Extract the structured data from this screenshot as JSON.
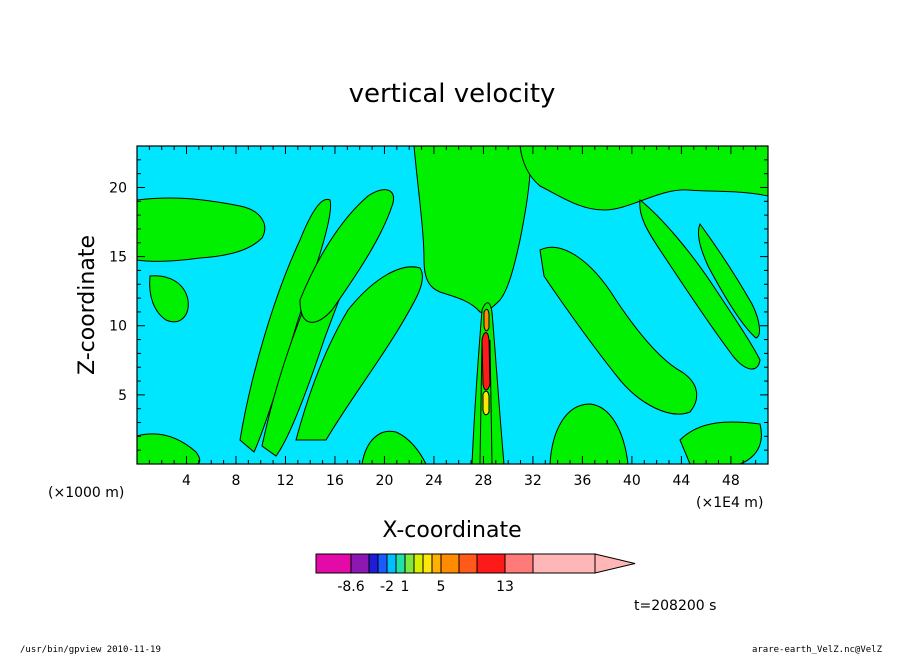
{
  "chart_data": {
    "type": "heatmap",
    "title": "vertical velocity",
    "xlabel": "X-coordinate",
    "ylabel": "Z-coordinate",
    "x_unit_left": "(×1000 m)",
    "x_unit_right": "(×1E4 m)",
    "xlim": [
      0,
      51
    ],
    "ylim": [
      0,
      23
    ],
    "xticks": [
      "4",
      "8",
      "12",
      "16",
      "20",
      "24",
      "28",
      "32",
      "36",
      "40",
      "44",
      "48"
    ],
    "yticks": [
      "5",
      "10",
      "15",
      "20"
    ],
    "colorbar": {
      "colors": [
        "#e30aa7",
        "#8c17b2",
        "#1c1cd9",
        "#1a5bff",
        "#00bfff",
        "#21e0a8",
        "#7ee83c",
        "#d6f000",
        "#ffe60a",
        "#ffb000",
        "#ff8c00",
        "#ff5a1a",
        "#ff1a1a",
        "#ff7a78",
        "#ffb6b6"
      ],
      "labels": [
        "-8.6",
        "-2",
        "1",
        "5",
        "13"
      ]
    },
    "fields": {
      "background": "#00e6ff",
      "updraft_region": "#00f000",
      "contour_color": "#000000"
    },
    "time_label": "t=208200 s"
  },
  "footer": {
    "left": "/usr/bin/gpview   2010-11-19",
    "right": "arare-earth_VelZ.nc@VelZ"
  }
}
